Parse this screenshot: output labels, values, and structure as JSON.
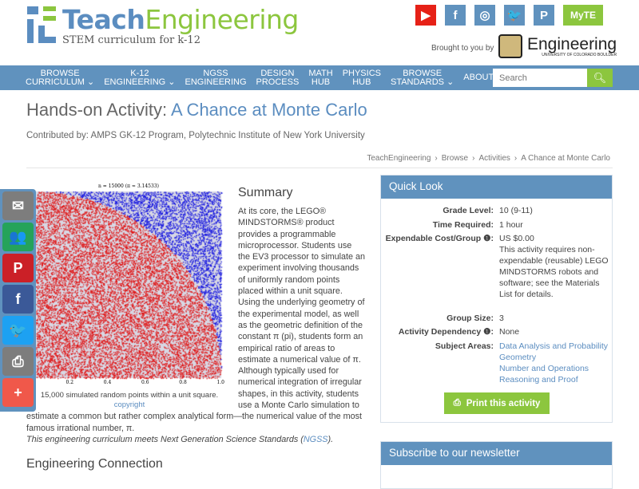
{
  "brand": {
    "name_a": "Teach",
    "name_b": "Engineering",
    "tagline": "STEM curriculum for k-12",
    "colors": {
      "blue": "#5b8dc0",
      "green": "#8cc63e"
    }
  },
  "social": [
    {
      "icon": "youtube-icon",
      "glyph": "▶",
      "color": "#e62117"
    },
    {
      "icon": "facebook-icon",
      "glyph": "f",
      "color": "#6092be"
    },
    {
      "icon": "instagram-icon",
      "glyph": "◎",
      "color": "#6092be"
    },
    {
      "icon": "twitter-icon",
      "glyph": "🐦",
      "color": "#6092be"
    },
    {
      "icon": "pinterest-icon",
      "glyph": "P",
      "color": "#6092be"
    }
  ],
  "myte": "MyTE",
  "brought_by": "Brought to you by",
  "sponsor": {
    "name": "Engineering",
    "sub": "UNIVERSITY OF COLORADO BOULDER"
  },
  "nav": [
    {
      "l1": "BROWSE",
      "l2": "CURRICULUM ⌄"
    },
    {
      "l1": "K-12",
      "l2": "ENGINEERING ⌄"
    },
    {
      "l1": "NGSS",
      "l2": "ENGINEERING"
    },
    {
      "l1": "DESIGN",
      "l2": "PROCESS"
    },
    {
      "l1": "MATH",
      "l2": "HUB"
    },
    {
      "l1": "PHYSICS",
      "l2": "HUB"
    },
    {
      "l1": "BROWSE",
      "l2": "STANDARDS ⌄"
    },
    {
      "l1": "",
      "l2": "ABOUT ⌄"
    }
  ],
  "search": {
    "placeholder": "Search"
  },
  "page": {
    "title_prefix": "Hands-on Activity: ",
    "title": "A Chance at Monte Carlo",
    "contributed": "Contributed by: AMPS GK-12 Program, Polytechnic Institute of New York University"
  },
  "breadcrumb": [
    "TeachEngineering",
    "›",
    "Browse",
    "›",
    "Activities",
    "›",
    "A Chance at Monte Carlo"
  ],
  "figure": {
    "plot_title": "n = 15000 (π ≈ 3.14533)",
    "ticks": [
      "0",
      "0.2",
      "0.4",
      "0.6",
      "0.8",
      "1.0"
    ],
    "caption": "15,000 simulated random points within a unit square.",
    "copyright": "copyright",
    "colors": {
      "inside": "#e01010",
      "outside": "#1010e0"
    }
  },
  "summary": {
    "heading": "Summary",
    "text": "At its core, the LEGO® MINDSTORMS® product provides a programmable microprocessor. Students use the EV3 processor to simulate an experiment involving thousands of uniformly random points placed within a unit square. Using the underlying geometry of the experimental model, as well as the geometric definition of the constant π (pi), students form an empirical ratio of areas to estimate a numerical value of π. Although typically used for numerical integration of irregular shapes, in this activity, students use a Monte Carlo simulation to estimate a common but rather complex analytical form—the numerical value of the most famous irrational number, π.",
    "ngss_a": "This engineering curriculum meets Next Generation Science Standards (",
    "ngss_link": "NGSS",
    "ngss_b": ")."
  },
  "engineering_connection": "Engineering Connection",
  "share": [
    {
      "icon": "email-icon",
      "glyph": "✉",
      "color": "#7d7d7d"
    },
    {
      "icon": "google-classroom-icon",
      "glyph": "👥",
      "color": "#25a35a"
    },
    {
      "icon": "pinterest-icon",
      "glyph": "P",
      "color": "#cb2027"
    },
    {
      "icon": "facebook-icon",
      "glyph": "f",
      "color": "#3b5998"
    },
    {
      "icon": "twitter-icon",
      "glyph": "🐦",
      "color": "#1da1f2"
    },
    {
      "icon": "print-icon",
      "glyph": "⎙",
      "color": "#7d7d7d"
    },
    {
      "icon": "plus-icon",
      "glyph": "+",
      "color": "#f0584a"
    }
  ],
  "quick_look": {
    "title": "Quick Look",
    "rows": [
      {
        "k": "Grade Level:",
        "v": "10 (9-11)"
      },
      {
        "k": "Time Required:",
        "v": "1 hour"
      },
      {
        "k": "Expendable Cost/Group ❶:",
        "v": "US $0.00",
        "note": "This activity requires non-expendable (reusable) LEGO MINDSTORMS robots and software; see the Materials List for details."
      },
      {
        "k": "Group Size:",
        "v": "3"
      },
      {
        "k": "Activity Dependency ❶:",
        "v": "None"
      }
    ],
    "subjects_label": "Subject Areas:",
    "subjects": [
      "Data Analysis and Probability",
      "Geometry",
      "Number and Operations",
      "Reasoning and Proof"
    ],
    "print": "Print this activity"
  },
  "newsletter": "Subscribe to our newsletter"
}
